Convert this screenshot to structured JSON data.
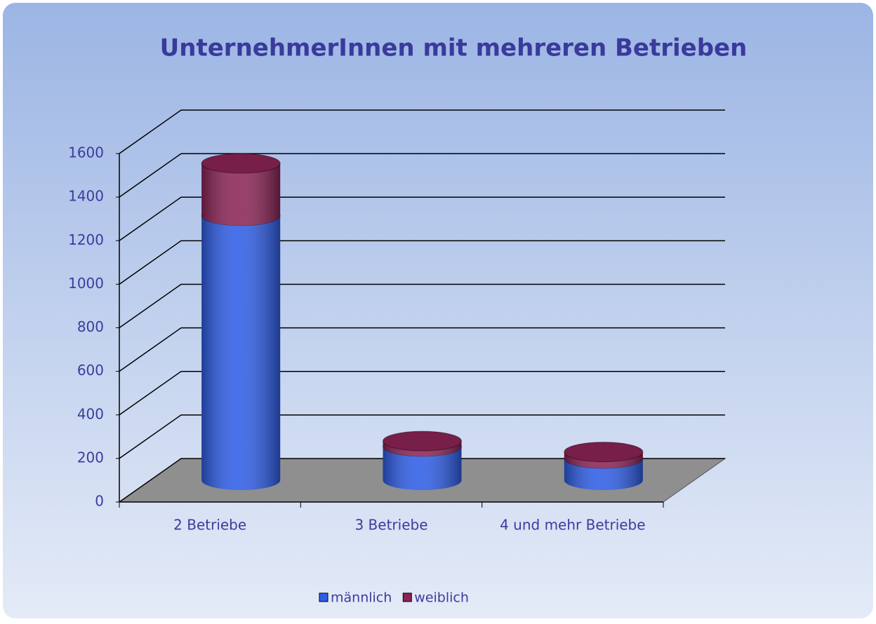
{
  "chart_data": {
    "type": "bar3d_stacked_cylinder",
    "title": "UnternehmerInnen mit mehreren Betrieben",
    "categories": [
      "2 Betriebe",
      "3 Betriebe",
      "4 und mehr Betriebe"
    ],
    "series": [
      {
        "name": "männlich",
        "color": "#2f5ee8",
        "values": [
          1215,
          155,
          100
        ]
      },
      {
        "name": "weiblich",
        "color": "#8c2456",
        "values": [
          240,
          25,
          30
        ]
      }
    ],
    "ylim": [
      0,
      1600
    ],
    "yticks": [
      0,
      200,
      400,
      600,
      800,
      1000,
      1200,
      1400,
      1600
    ],
    "grid": true,
    "legend": "bottom"
  }
}
